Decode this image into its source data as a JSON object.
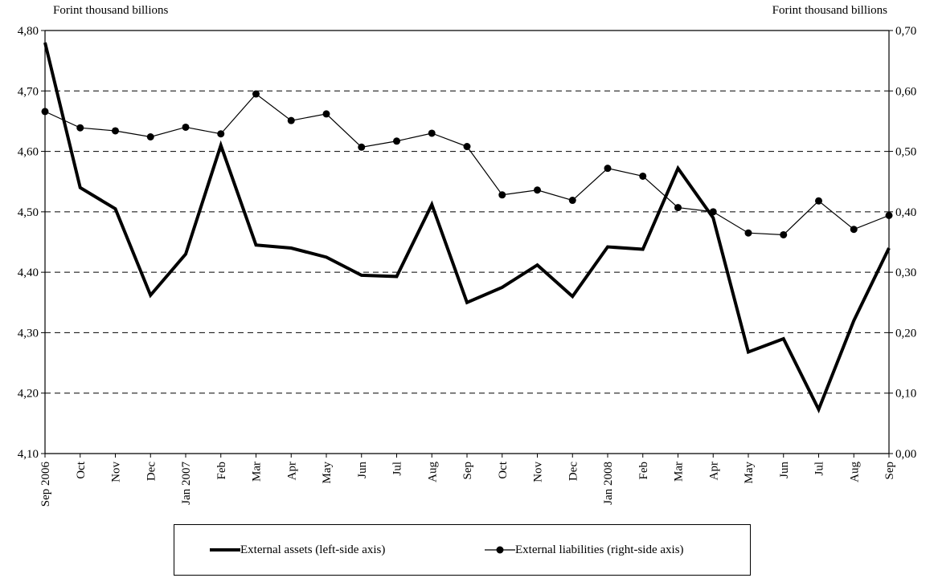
{
  "chart_data": {
    "type": "line",
    "left_axis_unit": "Forint thousand billions",
    "right_axis_unit": "Forint thousand billions",
    "x": [
      "Sep 2006",
      "Oct",
      "Nov",
      "Dec",
      "Jan 2007",
      "Feb",
      "Mar",
      "Apr",
      "May",
      "Jun",
      "Jul",
      "Aug",
      "Sep",
      "Oct",
      "Nov",
      "Dec",
      "Jan 2008",
      "Feb",
      "Mar",
      "Apr",
      "May",
      "Jun",
      "Jul",
      "Aug",
      "Sep"
    ],
    "y_left": {
      "min": 4.1,
      "max": 4.8,
      "step": 0.1,
      "tick_labels": [
        "4,10",
        "4,20",
        "4,30",
        "4,40",
        "4,50",
        "4,60",
        "4,70",
        "4,80"
      ]
    },
    "y_right": {
      "min": 0.0,
      "max": 0.7,
      "step": 0.1,
      "tick_labels": [
        "0,00",
        "0,10",
        "0,20",
        "0,30",
        "0,40",
        "0,50",
        "0,60",
        "0,70"
      ]
    },
    "grid": "horizontal dashed",
    "legend_position": "bottom",
    "series": [
      {
        "name": "External assets (left-side axis)",
        "axis": "left",
        "color": "#000000",
        "style": "thick line",
        "values": [
          4.78,
          4.54,
          4.505,
          4.362,
          4.43,
          4.61,
          4.445,
          4.44,
          4.425,
          4.395,
          4.393,
          4.512,
          4.35,
          4.375,
          4.412,
          4.36,
          4.442,
          4.438,
          4.572,
          4.49,
          4.268,
          4.29,
          4.173,
          4.32,
          4.44
        ]
      },
      {
        "name": "External liabilities (right-side axis)",
        "axis": "right",
        "color": "#000000",
        "style": "thin line with dots",
        "values": [
          0.566,
          0.539,
          0.534,
          0.524,
          0.54,
          0.529,
          0.595,
          0.551,
          0.562,
          0.507,
          0.517,
          0.53,
          0.508,
          0.428,
          0.436,
          0.419,
          0.472,
          0.459,
          0.407,
          0.4,
          0.365,
          0.362,
          0.418,
          0.371,
          0.394
        ]
      }
    ]
  }
}
